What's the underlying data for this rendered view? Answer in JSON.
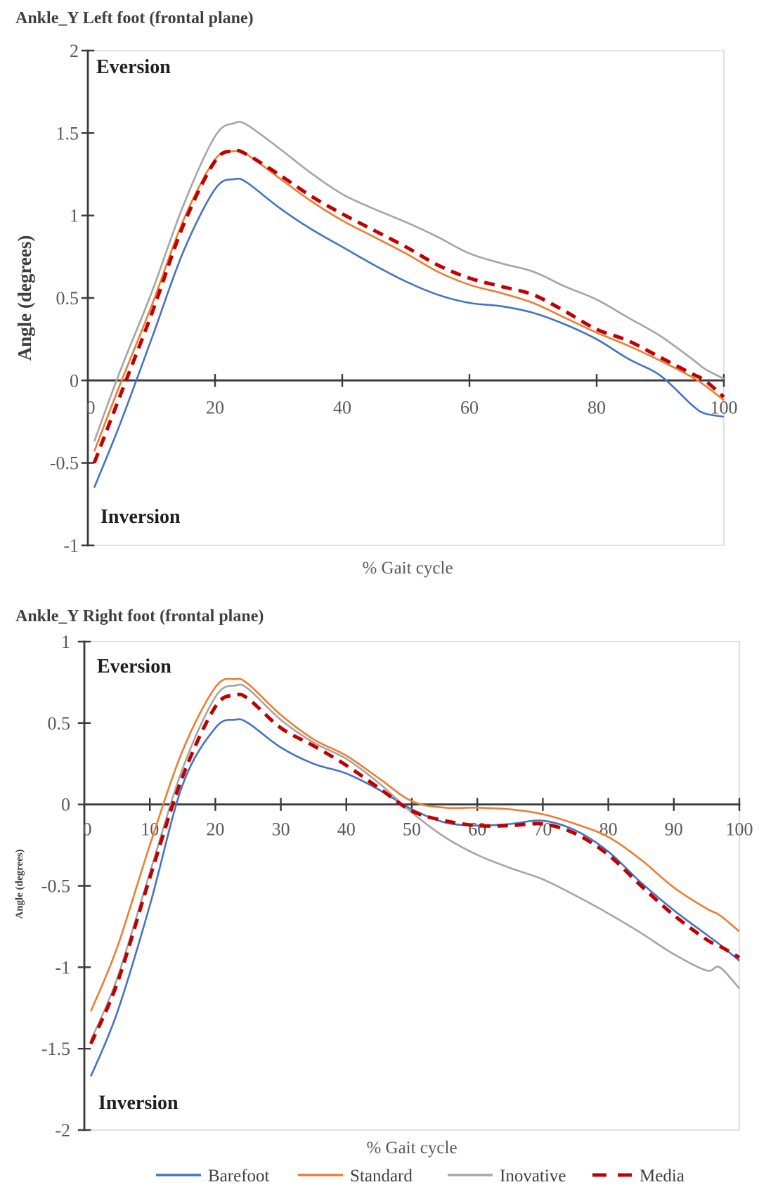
{
  "page": {
    "background": "#FFFFFF"
  },
  "legend": {
    "items": [
      {
        "label": "Barefoot",
        "color": "#4472C4",
        "dashed": false
      },
      {
        "label": "Standard",
        "color": "#ED7D31",
        "dashed": false
      },
      {
        "label": "Inovative",
        "color": "#A5A5A5",
        "dashed": false
      },
      {
        "label": "Media",
        "color": "#C00000",
        "dashed": true
      }
    ]
  },
  "chart_data": [
    {
      "type": "line",
      "title": "Ankle_Y Left foot (frontal plane)",
      "xlabel": "% Gait cycle",
      "ylabel": "Angle (degrees)",
      "annotations": {
        "upper": "Eversion",
        "lower": "Inversion"
      },
      "xlim": [
        0,
        100
      ],
      "ylim": [
        -1,
        2
      ],
      "xticks": [
        0,
        20,
        40,
        60,
        80,
        100
      ],
      "yticks": [
        2,
        1.5,
        1,
        0.5,
        0,
        -0.5,
        -1
      ],
      "grid": false,
      "x": [
        1,
        5,
        10,
        15,
        20,
        23,
        25,
        30,
        35,
        40,
        45,
        50,
        55,
        60,
        65,
        70,
        75,
        80,
        85,
        90,
        95,
        97,
        100
      ],
      "series": [
        {
          "name": "Barefoot",
          "color": "#4472C4",
          "dashed": false,
          "values": [
            -0.65,
            -0.27,
            0.25,
            0.78,
            1.16,
            1.22,
            1.2,
            1.05,
            0.92,
            0.81,
            0.7,
            0.6,
            0.52,
            0.47,
            0.45,
            0.41,
            0.34,
            0.25,
            0.13,
            0.03,
            -0.15,
            -0.2,
            -0.22
          ]
        },
        {
          "name": "Standard",
          "color": "#ED7D31",
          "dashed": false,
          "values": [
            -0.43,
            -0.03,
            0.45,
            0.97,
            1.34,
            1.39,
            1.37,
            1.23,
            1.09,
            0.97,
            0.87,
            0.77,
            0.66,
            0.58,
            0.53,
            0.47,
            0.38,
            0.29,
            0.21,
            0.12,
            0.02,
            -0.03,
            -0.12
          ]
        },
        {
          "name": "Inovative",
          "color": "#A5A5A5",
          "dashed": false,
          "values": [
            -0.37,
            0.05,
            0.53,
            1.06,
            1.48,
            1.56,
            1.55,
            1.41,
            1.26,
            1.13,
            1.04,
            0.96,
            0.87,
            0.77,
            0.71,
            0.66,
            0.57,
            0.49,
            0.38,
            0.27,
            0.13,
            0.07,
            0.01
          ]
        },
        {
          "name": "Media",
          "color": "#C00000",
          "dashed": true,
          "values": [
            -0.5,
            -0.1,
            0.4,
            0.94,
            1.33,
            1.39,
            1.37,
            1.25,
            1.12,
            1.01,
            0.91,
            0.81,
            0.7,
            0.62,
            0.57,
            0.52,
            0.42,
            0.31,
            0.24,
            0.14,
            0.04,
            0.0,
            -0.1
          ]
        }
      ]
    },
    {
      "type": "line",
      "title": "Ankle_Y Right foot (frontal plane)",
      "xlabel": "% Gait cycle",
      "ylabel": "Angle (degrees)",
      "annotations": {
        "upper": "Eversion",
        "lower": "Inversion"
      },
      "xlim": [
        0,
        100
      ],
      "ylim": [
        -2,
        1
      ],
      "xticks": [
        0,
        10,
        20,
        30,
        40,
        50,
        60,
        70,
        80,
        90,
        100
      ],
      "yticks": [
        1,
        0.5,
        0,
        -0.5,
        -1,
        -1.5,
        -2
      ],
      "grid": false,
      "x": [
        1,
        5,
        10,
        15,
        20,
        23,
        25,
        30,
        35,
        40,
        45,
        50,
        55,
        60,
        65,
        70,
        75,
        80,
        85,
        90,
        95,
        97,
        100
      ],
      "series": [
        {
          "name": "Barefoot",
          "color": "#4472C4",
          "dashed": false,
          "values": [
            -1.67,
            -1.28,
            -0.62,
            0.12,
            0.47,
            0.52,
            0.5,
            0.35,
            0.25,
            0.19,
            0.09,
            -0.03,
            -0.11,
            -0.13,
            -0.12,
            -0.1,
            -0.16,
            -0.29,
            -0.48,
            -0.65,
            -0.8,
            -0.86,
            -0.96
          ]
        },
        {
          "name": "Standard",
          "color": "#ED7D31",
          "dashed": false,
          "values": [
            -1.27,
            -0.88,
            -0.25,
            0.33,
            0.72,
            0.77,
            0.74,
            0.55,
            0.4,
            0.3,
            0.16,
            0.02,
            -0.02,
            -0.02,
            -0.03,
            -0.06,
            -0.12,
            -0.2,
            -0.34,
            -0.51,
            -0.64,
            -0.68,
            -0.78
          ]
        },
        {
          "name": "Inovative",
          "color": "#A5A5A5",
          "dashed": false,
          "values": [
            -1.45,
            -1.07,
            -0.42,
            0.22,
            0.66,
            0.73,
            0.71,
            0.52,
            0.38,
            0.28,
            0.13,
            -0.05,
            -0.2,
            -0.31,
            -0.39,
            -0.46,
            -0.56,
            -0.67,
            -0.79,
            -0.92,
            -1.02,
            -1.0,
            -1.13
          ]
        },
        {
          "name": "Media",
          "color": "#C00000",
          "dashed": true,
          "values": [
            -1.47,
            -1.1,
            -0.45,
            0.17,
            0.6,
            0.67,
            0.65,
            0.47,
            0.36,
            0.24,
            0.1,
            -0.04,
            -0.1,
            -0.13,
            -0.13,
            -0.12,
            -0.18,
            -0.31,
            -0.5,
            -0.68,
            -0.83,
            -0.87,
            -0.94
          ]
        }
      ]
    }
  ]
}
